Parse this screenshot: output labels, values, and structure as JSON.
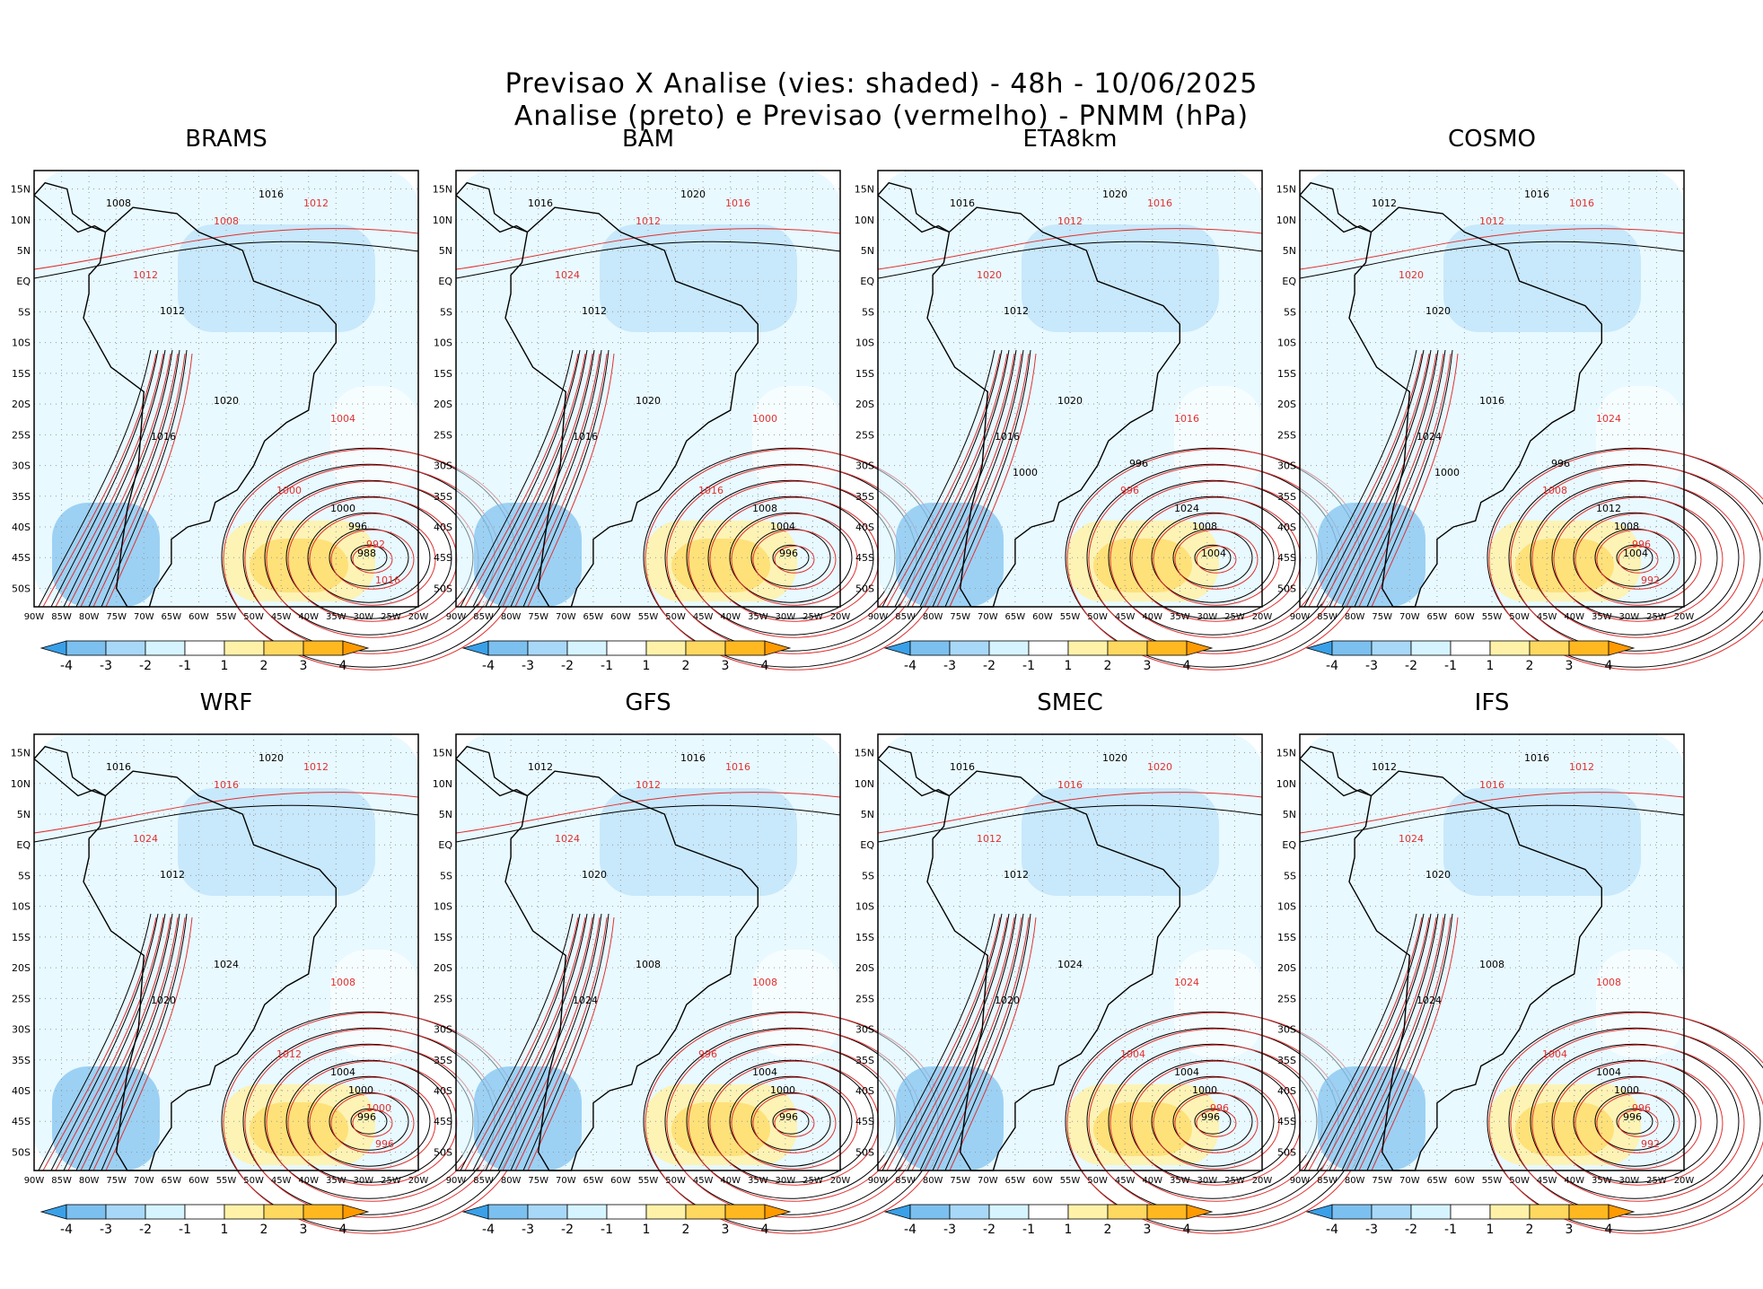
{
  "header": {
    "line1": "Previsao X Analise (vies: shaded) - 48h - 10/06/2025",
    "line2": "Analise (preto) e Previsao (vermelho) - PNMM (hPa)"
  },
  "axes": {
    "lat_labels": [
      "15N",
      "10N",
      "5N",
      "EQ",
      "5S",
      "10S",
      "15S",
      "20S",
      "25S",
      "30S",
      "35S",
      "40S",
      "45S",
      "50S"
    ],
    "lon_labels": [
      "90W",
      "85W",
      "80W",
      "75W",
      "70W",
      "65W",
      "60W",
      "55W",
      "50W",
      "45W",
      "40W",
      "35W",
      "30W",
      "25W",
      "20W"
    ]
  },
  "colorbar": {
    "labels": [
      "-4",
      "-3",
      "-2",
      "-1",
      "1",
      "2",
      "3",
      "4"
    ],
    "colors": [
      "#3aa0e8",
      "#7cc0f0",
      "#a8d8f8",
      "#d6f4ff",
      "#ffffff",
      "#fff2a8",
      "#ffd860",
      "#ffb820",
      "#ff9a00"
    ]
  },
  "colors": {
    "analysis": "#000000",
    "forecast": "#e03030"
  },
  "panels": [
    {
      "name": "BRAMS",
      "labels_black": [
        "1016",
        "1008",
        "1012",
        "1016",
        "1020",
        "1000",
        "996",
        "988"
      ],
      "labels_red": [
        "1012",
        "1008",
        "1012",
        "1004",
        "1000",
        "992",
        "1016"
      ]
    },
    {
      "name": "BAM",
      "labels_black": [
        "1020",
        "1016",
        "1012",
        "1016",
        "1020",
        "1008",
        "1004",
        "996"
      ],
      "labels_red": [
        "1016",
        "1012",
        "1024",
        "1000",
        "1016"
      ]
    },
    {
      "name": "ETA8km",
      "labels_black": [
        "1020",
        "1016",
        "1012",
        "1016",
        "1020",
        "1024",
        "1008",
        "1004",
        "1000",
        "996"
      ],
      "labels_red": [
        "1016",
        "1012",
        "1020",
        "1016",
        "996"
      ]
    },
    {
      "name": "COSMO",
      "labels_black": [
        "1016",
        "1012",
        "1020",
        "1024",
        "1016",
        "1012",
        "1008",
        "1004",
        "1000",
        "996"
      ],
      "labels_red": [
        "1016",
        "1012",
        "1020",
        "1024",
        "1008",
        "996",
        "992"
      ]
    },
    {
      "name": "WRF",
      "labels_black": [
        "1020",
        "1016",
        "1012",
        "1020",
        "1024",
        "1004",
        "1000",
        "996"
      ],
      "labels_red": [
        "1012",
        "1016",
        "1024",
        "1008",
        "1012",
        "1000",
        "996"
      ]
    },
    {
      "name": "GFS",
      "labels_black": [
        "1016",
        "1012",
        "1020",
        "1024",
        "1008",
        "1004",
        "1000",
        "996"
      ],
      "labels_red": [
        "1016",
        "1012",
        "1024",
        "1008",
        "996"
      ]
    },
    {
      "name": "SMEC",
      "labels_black": [
        "1020",
        "1016",
        "1012",
        "1020",
        "1024",
        "1004",
        "1000",
        "996"
      ],
      "labels_red": [
        "1020",
        "1016",
        "1012",
        "1024",
        "1004",
        "996"
      ]
    },
    {
      "name": "IFS",
      "labels_black": [
        "1016",
        "1012",
        "1020",
        "1024",
        "1008",
        "1004",
        "1000",
        "996"
      ],
      "labels_red": [
        "1012",
        "1016",
        "1024",
        "1008",
        "1004",
        "996",
        "992"
      ]
    }
  ]
}
